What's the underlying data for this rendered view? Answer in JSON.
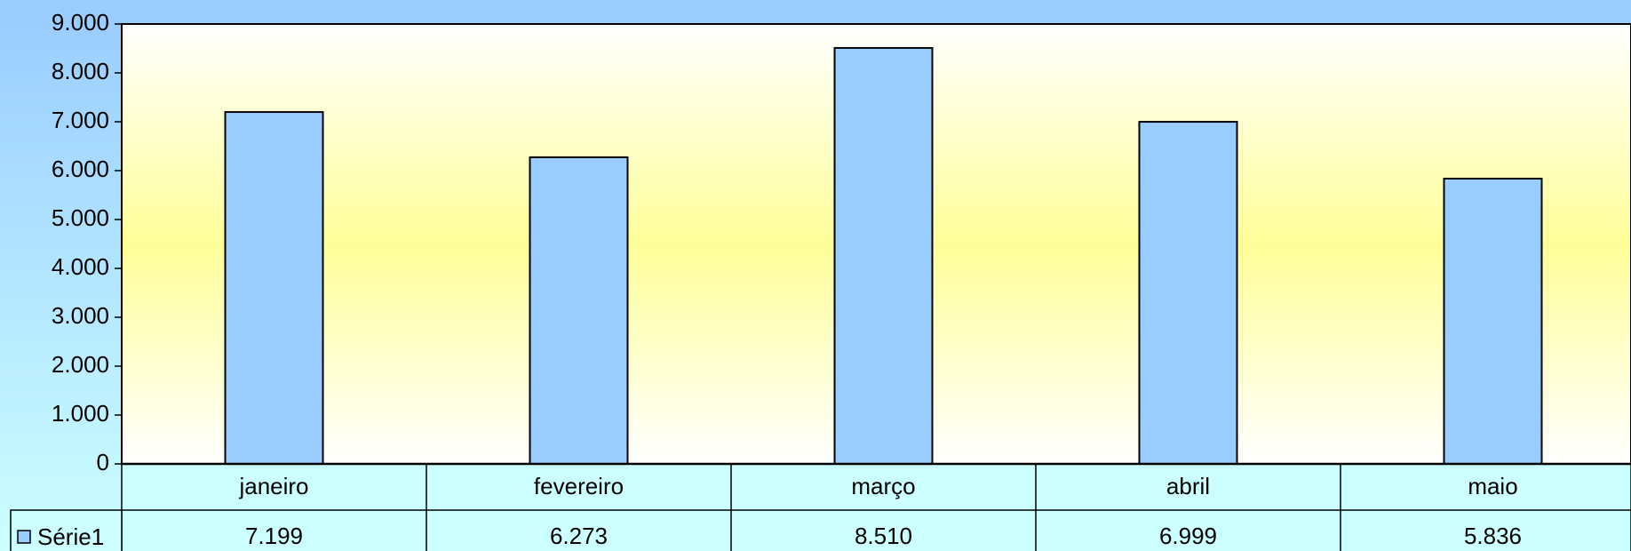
{
  "chart_data": {
    "type": "bar",
    "categories": [
      "janeiro",
      "fevereiro",
      "março",
      "abril",
      "maio"
    ],
    "series": [
      {
        "name": "Série1",
        "color": "#99ccff",
        "values": [
          7199,
          6273,
          8510,
          6999,
          5836
        ],
        "value_labels": [
          "7.199",
          "6.273",
          "8.510",
          "6.999",
          "5.836"
        ]
      }
    ],
    "ylim": [
      0,
      9000
    ],
    "yticks": [
      0,
      {
        "value": 1000,
        "label": "1.000"
      },
      {
        "value": 2000,
        "label": "2.000"
      },
      {
        "value": 3000,
        "label": "3.000"
      },
      {
        "value": 4000,
        "label": "4.000"
      },
      {
        "value": 5000,
        "label": "5.000"
      },
      {
        "value": 6000,
        "label": "6.000"
      },
      {
        "value": 7000,
        "label": "7.000"
      },
      {
        "value": 8000,
        "label": "8.000"
      },
      {
        "value": 9000,
        "label": "9.000"
      }
    ],
    "legend": "bottom-left"
  }
}
